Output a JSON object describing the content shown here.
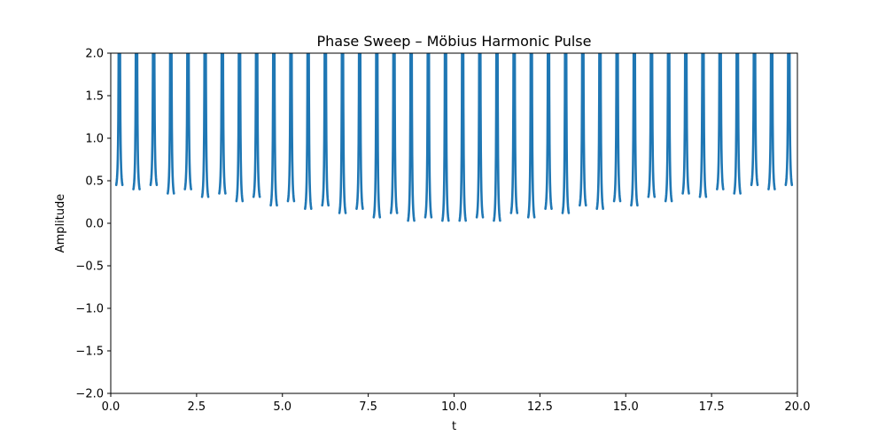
{
  "chart_data": {
    "type": "line",
    "title": "Phase Sweep – Möbius Harmonic Pulse",
    "xlabel": "t",
    "ylabel": "Amplitude",
    "xlim": [
      0,
      20
    ],
    "ylim": [
      -2,
      2
    ],
    "xticks": [
      "0.0",
      "2.5",
      "5.0",
      "7.5",
      "10.0",
      "12.5",
      "15.0",
      "17.5",
      "20.0"
    ],
    "yticks": [
      "−2.0",
      "−1.5",
      "−1.0",
      "−0.5",
      "0.0",
      "0.5",
      "1.0",
      "1.5",
      "2.0"
    ],
    "grid": false,
    "legend": "none",
    "series": [
      {
        "color": "#1f77b4",
        "x": [
          0.25,
          0.75,
          1.25,
          1.75,
          2.25,
          2.75,
          3.25,
          3.75,
          4.25,
          4.75,
          5.25,
          5.75,
          6.25,
          6.75,
          7.25,
          7.75,
          8.25,
          8.75,
          9.25,
          9.75,
          10.25,
          10.75,
          11.25,
          11.75,
          12.25,
          12.75,
          13.25,
          13.75,
          14.25,
          14.75,
          15.25,
          15.75,
          16.25,
          16.75,
          17.25,
          17.75,
          18.25,
          18.75,
          19.25,
          19.75
        ],
        "min": [
          0.45,
          0.4,
          0.45,
          0.35,
          0.4,
          0.31,
          0.35,
          0.26,
          0.31,
          0.21,
          0.26,
          0.17,
          0.21,
          0.12,
          0.17,
          0.07,
          0.12,
          0.03,
          0.07,
          0.03,
          0.03,
          0.07,
          0.03,
          0.12,
          0.07,
          0.17,
          0.12,
          0.21,
          0.17,
          0.26,
          0.21,
          0.31,
          0.26,
          0.35,
          0.31,
          0.4,
          0.35,
          0.45,
          0.4,
          0.45
        ]
      }
    ]
  }
}
